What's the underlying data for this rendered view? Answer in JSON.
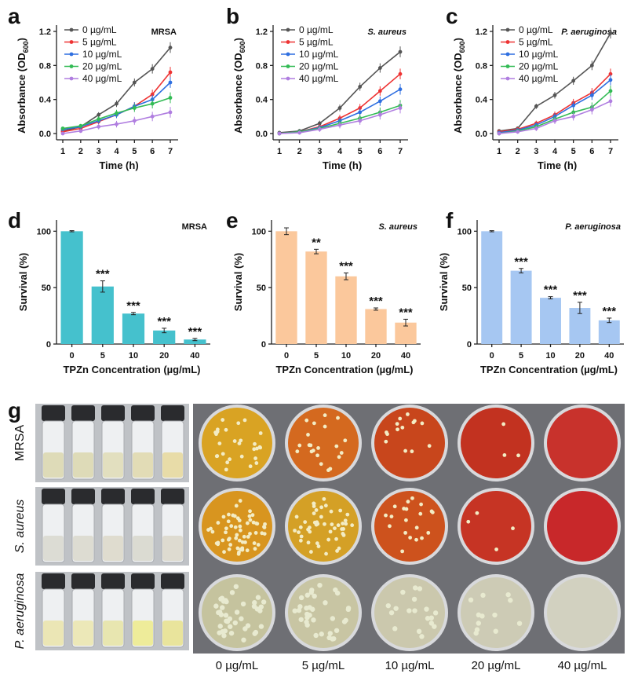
{
  "chart_data": [
    {
      "panel": "a",
      "type": "line",
      "tag": "MRSA",
      "xlabel": "Time (h)",
      "ylabel": "Absorbance (OD600)",
      "x": [
        1,
        2,
        3,
        4,
        5,
        6,
        7
      ],
      "xlim": [
        1,
        7
      ],
      "ylim": [
        0,
        1.2
      ],
      "xticks": [
        "1",
        "2",
        "3",
        "4",
        "5",
        "6",
        "7"
      ],
      "yticks": [
        "0.0",
        "0.4",
        "0.8",
        "1.2"
      ],
      "series": [
        {
          "name": "0 µg/mL",
          "color": "#555555",
          "values": [
            0.03,
            0.08,
            0.22,
            0.35,
            0.6,
            0.76,
            1.01
          ]
        },
        {
          "name": "5 µg/mL",
          "color": "#ee3333",
          "values": [
            0.02,
            0.06,
            0.14,
            0.22,
            0.32,
            0.46,
            0.72
          ]
        },
        {
          "name": "10 µg/mL",
          "color": "#2f6fe0",
          "values": [
            0.05,
            0.08,
            0.15,
            0.22,
            0.32,
            0.4,
            0.6
          ]
        },
        {
          "name": "20 µg/mL",
          "color": "#33bb55",
          "values": [
            0.06,
            0.09,
            0.17,
            0.24,
            0.3,
            0.35,
            0.42
          ]
        },
        {
          "name": "40 µg/mL",
          "color": "#b07ee0",
          "values": [
            0.0,
            0.03,
            0.08,
            0.11,
            0.15,
            0.2,
            0.25
          ]
        }
      ]
    },
    {
      "panel": "b",
      "type": "line",
      "tag": "S. aureus",
      "xlabel": "Time (h)",
      "ylabel": "Absorbance (OD600)",
      "x": [
        1,
        2,
        3,
        4,
        5,
        6,
        7
      ],
      "xlim": [
        1,
        7
      ],
      "ylim": [
        0,
        1.2
      ],
      "xticks": [
        "1",
        "2",
        "3",
        "4",
        "5",
        "6",
        "7"
      ],
      "yticks": [
        "0.0",
        "0.4",
        "0.8",
        "1.2"
      ],
      "series": [
        {
          "name": "0 µg/mL",
          "color": "#555555",
          "values": [
            0.01,
            0.03,
            0.12,
            0.3,
            0.55,
            0.77,
            0.96
          ]
        },
        {
          "name": "5 µg/mL",
          "color": "#ee3333",
          "values": [
            0.0,
            0.02,
            0.08,
            0.18,
            0.3,
            0.5,
            0.7
          ]
        },
        {
          "name": "10 µg/mL",
          "color": "#2f6fe0",
          "values": [
            0.0,
            0.02,
            0.07,
            0.15,
            0.25,
            0.38,
            0.52
          ]
        },
        {
          "name": "20 µg/mL",
          "color": "#33bb55",
          "values": [
            0.0,
            0.02,
            0.06,
            0.12,
            0.18,
            0.25,
            0.33
          ]
        },
        {
          "name": "40 µg/mL",
          "color": "#b07ee0",
          "values": [
            0.0,
            0.01,
            0.05,
            0.1,
            0.15,
            0.22,
            0.3
          ]
        }
      ]
    },
    {
      "panel": "c",
      "type": "line",
      "tag": "P. aeruginosa",
      "xlabel": "Time (h)",
      "ylabel": "Absorbance (OD600)",
      "x": [
        1,
        2,
        3,
        4,
        5,
        6,
        7
      ],
      "xlim": [
        1,
        7
      ],
      "ylim": [
        0,
        1.2
      ],
      "xticks": [
        "1",
        "2",
        "3",
        "4",
        "5",
        "6",
        "7"
      ],
      "yticks": [
        "0.0",
        "0.4",
        "0.8",
        "1.2"
      ],
      "series": [
        {
          "name": "0 µg/mL",
          "color": "#555555",
          "values": [
            0.03,
            0.06,
            0.32,
            0.45,
            0.62,
            0.8,
            1.18
          ]
        },
        {
          "name": "5 µg/mL",
          "color": "#ee3333",
          "values": [
            0.02,
            0.05,
            0.12,
            0.22,
            0.36,
            0.48,
            0.7
          ]
        },
        {
          "name": "10 µg/mL",
          "color": "#2f6fe0",
          "values": [
            0.01,
            0.04,
            0.1,
            0.2,
            0.33,
            0.45,
            0.63
          ]
        },
        {
          "name": "20 µg/mL",
          "color": "#33bb55",
          "values": [
            0.0,
            0.03,
            0.08,
            0.17,
            0.25,
            0.31,
            0.5
          ]
        },
        {
          "name": "40 µg/mL",
          "color": "#b07ee0",
          "values": [
            0.0,
            0.02,
            0.06,
            0.15,
            0.2,
            0.28,
            0.38
          ]
        }
      ]
    },
    {
      "panel": "d",
      "type": "bar",
      "tag": "MRSA",
      "color": "#45c1cd",
      "xlabel": "TPZn Concentration (µg/mL)",
      "ylabel": "Survival (%)",
      "categories": [
        "0",
        "5",
        "10",
        "20",
        "40"
      ],
      "values": [
        100,
        51,
        27,
        12,
        4
      ],
      "errors": [
        0.5,
        5,
        1,
        2,
        1
      ],
      "significance": [
        "",
        "***",
        "***",
        "***",
        "***"
      ],
      "ylim": [
        0,
        110
      ],
      "yticks": [
        "0",
        "50",
        "100"
      ]
    },
    {
      "panel": "e",
      "type": "bar",
      "tag": "S. aureus",
      "color": "#fbc89c",
      "xlabel": "TPZn Concentration (µg/mL)",
      "ylabel": "Survival (%)",
      "categories": [
        "0",
        "5",
        "10",
        "20",
        "40"
      ],
      "values": [
        100,
        82,
        60,
        31,
        19
      ],
      "errors": [
        3,
        2,
        3,
        1,
        3
      ],
      "significance": [
        "",
        "**",
        "***",
        "***",
        "***"
      ],
      "ylim": [
        0,
        110
      ],
      "yticks": [
        "0",
        "50",
        "100"
      ]
    },
    {
      "panel": "f",
      "type": "bar",
      "tag": "P. aeruginosa",
      "color": "#a6c7f2",
      "xlabel": "TPZn Concentration (µg/mL)",
      "ylabel": "Survival (%)",
      "categories": [
        "0",
        "5",
        "10",
        "20",
        "40"
      ],
      "values": [
        100,
        65,
        41,
        32,
        21
      ],
      "errors": [
        0.5,
        2,
        1,
        5,
        2
      ],
      "significance": [
        "",
        "***",
        "***",
        "***",
        "***"
      ],
      "ylim": [
        0,
        110
      ],
      "yticks": [
        "0",
        "50",
        "100"
      ]
    }
  ],
  "panel_g": {
    "label": "g",
    "row_labels": [
      "MRSA",
      "S. aureus",
      "P. aeruginosa"
    ],
    "column_labels": [
      "0 µg/mL",
      "5 µg/mL",
      "10 µg/mL",
      "20 µg/mL",
      "40 µg/mL"
    ],
    "rows": [
      {
        "plate_colors": [
          "#d9a323",
          "#d4691f",
          "#c8461c",
          "#c23220",
          "#c8322c"
        ],
        "colonies": [
          28,
          22,
          14,
          3,
          0
        ],
        "colony_color": "#f3ecc4",
        "liquid": [
          "#dedbb8",
          "#dedbb8",
          "#e2dfbf",
          "#e2dcb6",
          "#e8dca8"
        ]
      },
      {
        "plate_colors": [
          "#d8951f",
          "#d4a026",
          "#cd521d",
          "#c63424",
          "#c8282a"
        ],
        "colonies": [
          60,
          48,
          20,
          4,
          0
        ],
        "colony_color": "#f3ecc4",
        "liquid": [
          "#dcdcd4",
          "#dddcd2",
          "#dfdccf",
          "#dbdbd2",
          "#dedbd0"
        ]
      },
      {
        "plate_colors": [
          "#c5c39e",
          "#c8c5a3",
          "#cbc8ad",
          "#cdcbb5",
          "#d2d1c0"
        ],
        "colonies": [
          40,
          34,
          18,
          12,
          0
        ],
        "colony_color": "#e8ead0",
        "liquid": [
          "#ebe6b5",
          "#ece8b8",
          "#e8e6b0",
          "#eeec9a",
          "#e9e49c"
        ]
      }
    ]
  }
}
